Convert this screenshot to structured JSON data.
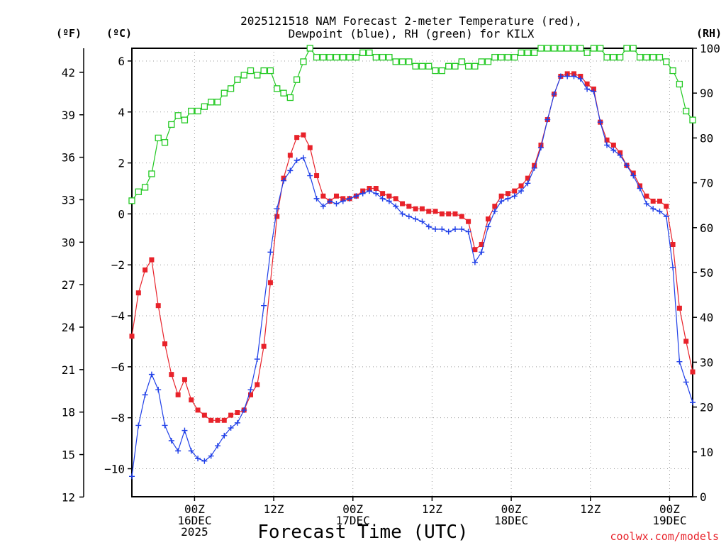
{
  "chart_data": {
    "type": "line",
    "title_line1": "2025121518 NAM Forecast 2-meter Temperature (red),",
    "title_line2": "Dewpoint (blue), RH (green) for KILX",
    "unit_labels": {
      "fahrenheit": "(ºF)",
      "celsius": "(ºC)",
      "rh": "(RH)"
    },
    "xlabel": "Forecast Time (UTC)",
    "credit": "coolwx.com/models",
    "xlim_hours": [
      -3.5,
      81.5
    ],
    "celsius_axis": {
      "ylim": [
        -11.1,
        6.5
      ],
      "ticks": [
        6,
        4,
        2,
        0,
        -2,
        -4,
        -6,
        -8,
        -10
      ]
    },
    "fahrenheit_axis": {
      "ticks": [
        42,
        39,
        36,
        33,
        30,
        27,
        24,
        21,
        18,
        15,
        12
      ]
    },
    "rh_axis": {
      "ylim": [
        0,
        100
      ],
      "ticks": [
        100,
        90,
        80,
        70,
        60,
        50,
        40,
        30,
        20,
        10,
        0
      ]
    },
    "x_ticks": [
      {
        "hour": 6,
        "lines": [
          "00Z",
          "16DEC",
          "2025"
        ]
      },
      {
        "hour": 18,
        "lines": [
          "12Z"
        ]
      },
      {
        "hour": 30,
        "lines": [
          "00Z",
          "17DEC"
        ]
      },
      {
        "hour": 42,
        "lines": [
          "12Z"
        ]
      },
      {
        "hour": 54,
        "lines": [
          "00Z",
          "18DEC"
        ]
      },
      {
        "hour": 66,
        "lines": [
          "12Z"
        ]
      },
      {
        "hour": 78,
        "lines": [
          "00Z",
          "19DEC"
        ]
      }
    ],
    "hours": [
      -3.5,
      -2.5,
      -1.5,
      -0.5,
      0.5,
      1.5,
      2.5,
      3.5,
      4.5,
      5.5,
      6.5,
      7.5,
      8.5,
      9.5,
      10.5,
      11.5,
      12.5,
      13.5,
      14.5,
      15.5,
      16.5,
      17.5,
      18.5,
      19.5,
      20.5,
      21.5,
      22.5,
      23.5,
      24.5,
      25.5,
      26.5,
      27.5,
      28.5,
      29.5,
      30.5,
      31.5,
      32.5,
      33.5,
      34.5,
      35.5,
      36.5,
      37.5,
      38.5,
      39.5,
      40.5,
      41.5,
      42.5,
      43.5,
      44.5,
      45.5,
      46.5,
      47.5,
      48.5,
      49.5,
      50.5,
      51.5,
      52.5,
      53.5,
      54.5,
      55.5,
      56.5,
      57.5,
      58.5,
      59.5,
      60.5,
      61.5,
      62.5,
      63.5,
      64.5,
      65.5,
      66.5,
      67.5,
      68.5,
      69.5,
      70.5,
      71.5,
      72.5,
      73.5,
      74.5,
      75.5,
      76.5,
      77.5,
      78.5,
      79.5,
      80.5,
      81.5
    ],
    "series": [
      {
        "name": "Temperature",
        "color": "#e8222a",
        "unit": "C",
        "marker": "filled-square",
        "values": [
          -4.8,
          -3.1,
          -2.2,
          -1.8,
          -3.6,
          -5.1,
          -6.3,
          -7.1,
          -6.5,
          -7.3,
          -7.7,
          -7.9,
          -8.1,
          -8.1,
          -8.1,
          -7.9,
          -7.8,
          -7.7,
          -7.1,
          -6.7,
          -5.2,
          -2.7,
          -0.1,
          1.4,
          2.3,
          3.0,
          3.1,
          2.6,
          1.5,
          0.7,
          0.5,
          0.7,
          0.6,
          0.6,
          0.7,
          0.9,
          1.0,
          1.0,
          0.8,
          0.7,
          0.6,
          0.4,
          0.3,
          0.2,
          0.2,
          0.1,
          0.1,
          0.0,
          0.0,
          0.0,
          -0.1,
          -0.3,
          -1.4,
          -1.2,
          -0.2,
          0.3,
          0.7,
          0.8,
          0.9,
          1.1,
          1.4,
          1.9,
          2.7,
          3.7,
          4.7,
          5.4,
          5.5,
          5.5,
          5.4,
          5.1,
          4.9,
          3.6,
          2.9,
          2.7,
          2.4,
          1.9,
          1.6,
          1.1,
          0.7,
          0.5,
          0.5,
          0.3,
          -1.2,
          -3.7,
          -5.0,
          -6.2
        ]
      },
      {
        "name": "Dewpoint",
        "color": "#1f3fe8",
        "unit": "C",
        "marker": "plus",
        "values": [
          -10.3,
          -8.3,
          -7.1,
          -6.3,
          -6.9,
          -8.3,
          -8.9,
          -9.3,
          -8.5,
          -9.3,
          -9.6,
          -9.7,
          -9.5,
          -9.1,
          -8.7,
          -8.4,
          -8.2,
          -7.7,
          -6.9,
          -5.7,
          -3.6,
          -1.5,
          0.2,
          1.3,
          1.7,
          2.1,
          2.2,
          1.5,
          0.6,
          0.3,
          0.5,
          0.4,
          0.5,
          0.6,
          0.7,
          0.8,
          0.9,
          0.8,
          0.6,
          0.5,
          0.3,
          0.0,
          -0.1,
          -0.2,
          -0.3,
          -0.5,
          -0.6,
          -0.6,
          -0.7,
          -0.6,
          -0.6,
          -0.7,
          -1.9,
          -1.5,
          -0.5,
          0.1,
          0.5,
          0.6,
          0.7,
          0.9,
          1.2,
          1.8,
          2.6,
          3.7,
          4.7,
          5.4,
          5.4,
          5.4,
          5.3,
          4.9,
          4.8,
          3.6,
          2.7,
          2.5,
          2.3,
          1.9,
          1.5,
          1.0,
          0.4,
          0.2,
          0.1,
          -0.1,
          -2.1,
          -5.8,
          -6.6,
          -7.4
        ]
      },
      {
        "name": "RH",
        "color": "#22c922",
        "unit": "%",
        "marker": "open-square",
        "values": [
          66,
          68,
          69,
          72,
          80,
          79,
          83,
          85,
          84,
          86,
          86,
          87,
          88,
          88,
          90,
          91,
          93,
          94,
          95,
          94,
          95,
          95,
          91,
          90,
          89,
          93,
          97,
          100,
          98,
          98,
          98,
          98,
          98,
          98,
          98,
          99,
          99,
          98,
          98,
          98,
          97,
          97,
          97,
          96,
          96,
          96,
          95,
          95,
          96,
          96,
          97,
          96,
          96,
          97,
          97,
          98,
          98,
          98,
          98,
          99,
          99,
          99,
          100,
          100,
          100,
          100,
          100,
          100,
          100,
          99,
          100,
          100,
          98,
          98,
          98,
          100,
          100,
          98,
          98,
          98,
          98,
          97,
          95,
          92,
          86,
          84
        ]
      }
    ]
  }
}
